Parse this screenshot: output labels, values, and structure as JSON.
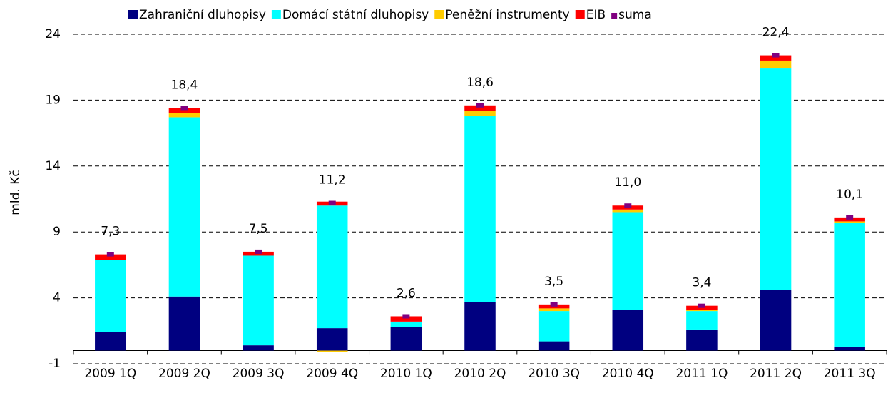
{
  "chart_data": {
    "type": "bar",
    "stacked": true,
    "y_label": "mld. Kč",
    "categories": [
      "2009 1Q",
      "2009 2Q",
      "2009 3Q",
      "2009 4Q",
      "2010 1Q",
      "2010 2Q",
      "2010 3Q",
      "2010 4Q",
      "2011 1Q",
      "2011 2Q",
      "2011 3Q"
    ],
    "series": [
      {
        "name": "Zahraniční dluhopisy",
        "color": "#000080",
        "values": [
          1.4,
          4.1,
          0.4,
          1.7,
          1.8,
          3.7,
          0.7,
          3.1,
          1.6,
          4.6,
          0.3
        ]
      },
      {
        "name": "Domácí státní dluhopisy",
        "color": "#00ffff",
        "values": [
          5.5,
          13.6,
          6.8,
          9.3,
          0.4,
          14.1,
          2.3,
          7.4,
          1.4,
          16.8,
          9.4
        ]
      },
      {
        "name": "Peněžní instrumenty",
        "color": "#ffcc00",
        "values": [
          0,
          0.3,
          0,
          -0.1,
          0,
          0.4,
          0.2,
          0.2,
          0.1,
          0.6,
          0.1
        ]
      },
      {
        "name": "EIB",
        "color": "#ff0000",
        "values": [
          0.4,
          0.4,
          0.3,
          0.3,
          0.4,
          0.4,
          0.3,
          0.3,
          0.3,
          0.4,
          0.3
        ]
      },
      {
        "name": "suma",
        "color": "#800080",
        "type": "marker",
        "values": [
          7.3,
          18.4,
          7.5,
          11.2,
          2.6,
          18.6,
          3.5,
          11.0,
          3.4,
          22.4,
          10.1
        ],
        "value_labels": [
          "7,3",
          "18,4",
          "7,5",
          "11,2",
          "2,6",
          "18,6",
          "3,5",
          "11,0",
          "3,4",
          "22,4",
          "10,1"
        ]
      }
    ],
    "ylim": [
      -1,
      24
    ],
    "yticks": [
      -1,
      4,
      9,
      14,
      19,
      24
    ],
    "grid": true,
    "legend": "top"
  }
}
